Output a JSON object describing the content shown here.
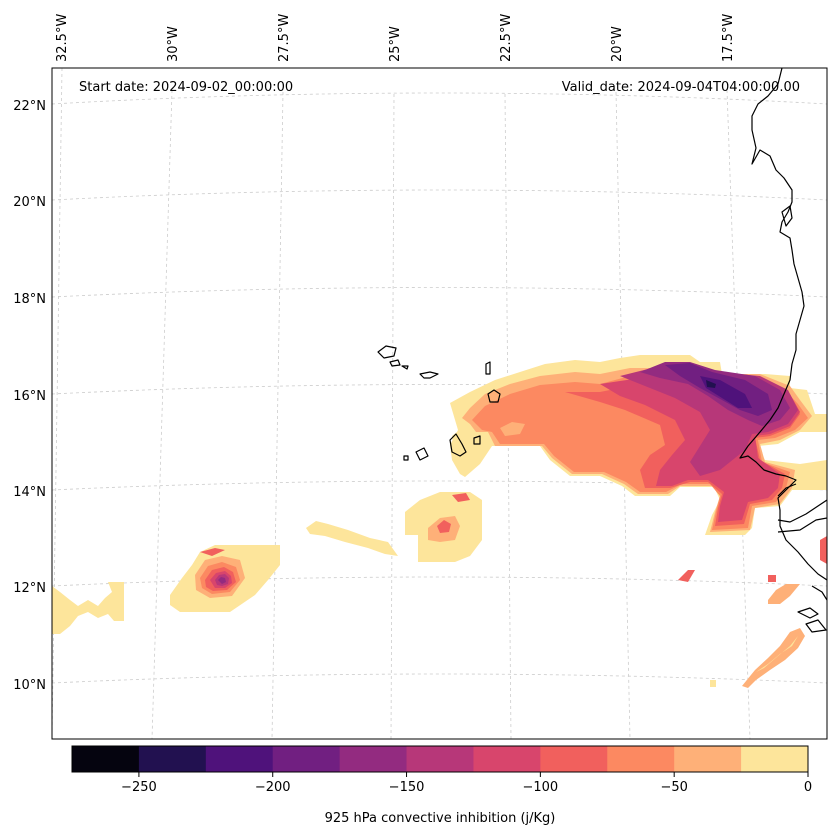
{
  "map": {
    "start_label": "Start date: 2024-09-02_00:00:00",
    "valid_label": "Valid_date: 2024-09-04T04:00:00.00",
    "lon_labels": [
      "32.5°W",
      "30°W",
      "27.5°W",
      "25°W",
      "22.5°W",
      "20°W",
      "17.5°W"
    ],
    "lat_labels": [
      "22°N",
      "20°N",
      "18°N",
      "16°N",
      "14°N",
      "12°N",
      "10°N"
    ],
    "field_name": "925 hPa convective inhibition",
    "units": "j/Kg"
  },
  "colorbar": {
    "label": "925 hPa convective inhibition (j/Kg)",
    "levels": [
      -275,
      -250,
      -225,
      -200,
      -175,
      -150,
      -125,
      -100,
      -75,
      -50,
      -25,
      0
    ],
    "colors": [
      "#05040f",
      "#221150",
      "#4f127b",
      "#711f81",
      "#932b80",
      "#b73779",
      "#d8456c",
      "#f1605d",
      "#fc8961",
      "#feb078",
      "#fde59b"
    ],
    "ticks": [
      -250,
      -200,
      -150,
      -100,
      -50,
      0
    ],
    "tick_labels": [
      "−250",
      "−200",
      "−150",
      "−100",
      "−50",
      "0"
    ]
  },
  "colors": {
    "coastline": "#000000",
    "gridline": "#cccccc",
    "frame": "#000000"
  }
}
